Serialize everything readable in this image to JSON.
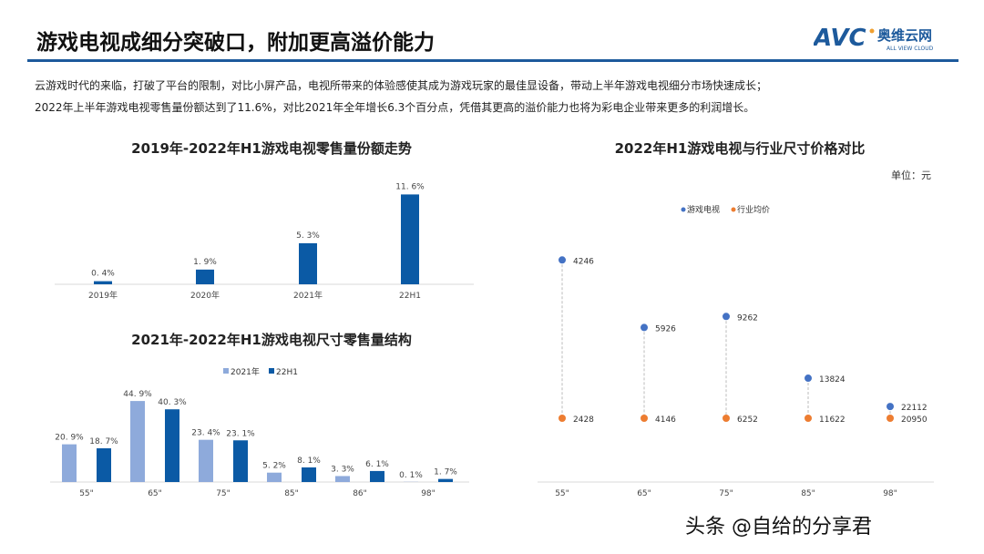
{
  "header": {
    "title": "游戏电视成细分突破口，附加更高溢价能力",
    "logo": {
      "mark": "AVC",
      "cn": "奥维云网",
      "en": "ALL VIEW CLOUD"
    }
  },
  "body": {
    "lines": [
      "云游戏时代的来临，打破了平台的限制，对比小屏产品，电视所带来的体验感使其成为游戏玩家的最佳显设备，带动上半年游戏电视细分市场快速成长；",
      "2022年上半年游戏电视零售量份额达到了11.6%，对比2021年全年增长6.3个百分点，凭借其更高的溢价能力也将为彩电企业带来更多的利润增长。"
    ]
  },
  "colors": {
    "accent": "#1d5a9c",
    "bar_dark": "#0b5aa5",
    "bar_light": "#8eaadb",
    "dot_blue": "#4472c4",
    "dot_orange": "#ed7d31"
  },
  "chart_data": [
    {
      "type": "bar",
      "title": "2019年-2022年H1游戏电视零售量份额走势",
      "categories": [
        "2019年",
        "2020年",
        "2021年",
        "22H1"
      ],
      "values": [
        0.4,
        1.9,
        5.3,
        11.6
      ],
      "data_labels": [
        "0.4%",
        "1.9%",
        "5.3%",
        "11.6%"
      ],
      "unit": "%",
      "grid": false
    },
    {
      "type": "bar",
      "title": "2021年-2022年H1游戏电视尺寸零售量结构",
      "categories": [
        "55\"",
        "65\"",
        "75\"",
        "85\"",
        "86\"",
        "98\""
      ],
      "legend_position": "top",
      "series": [
        {
          "name": "2021年",
          "values": [
            20.9,
            44.9,
            23.4,
            5.2,
            3.3,
            0.1
          ]
        },
        {
          "name": "22H1",
          "values": [
            18.7,
            40.3,
            23.1,
            8.1,
            6.1,
            1.7
          ]
        }
      ],
      "unit": "%",
      "grid": false
    },
    {
      "type": "scatter",
      "title": "2022年H1游戏电视与行业尺寸价格对比",
      "unit_label": "单位：元",
      "categories": [
        "55\"",
        "65\"",
        "75\"",
        "85\"",
        "98\""
      ],
      "legend_position": "top",
      "series": [
        {
          "name": "游戏电视",
          "values": [
            4246,
            5926,
            9262,
            13824,
            22112
          ]
        },
        {
          "name": "行业均价",
          "values": [
            2428,
            4146,
            6252,
            11622,
            20950
          ]
        }
      ],
      "grid": false
    }
  ],
  "footer": {
    "credit": "头条 @自给的分享君"
  }
}
